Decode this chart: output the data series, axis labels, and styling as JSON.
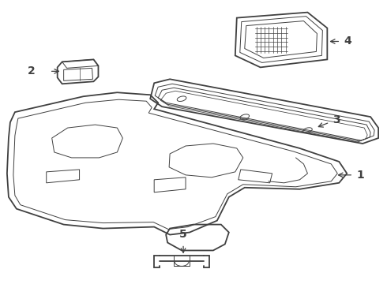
{
  "bg_color": "#ffffff",
  "line_color": "#404040",
  "label_color": "#000000",
  "figsize": [
    4.9,
    3.6
  ],
  "dpi": 100,
  "lw_main": 1.3,
  "lw_thin": 0.7,
  "lw_inner": 0.5,
  "label_fontsize": 10
}
